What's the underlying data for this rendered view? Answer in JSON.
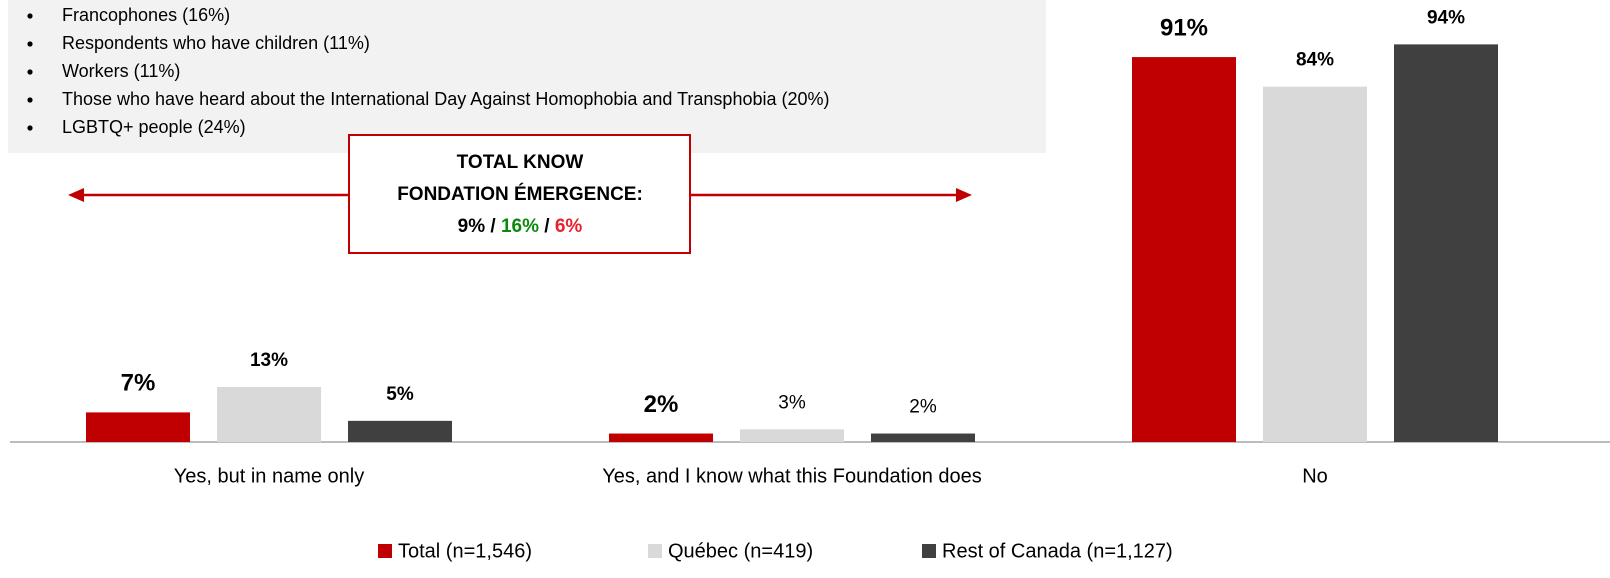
{
  "chart_data": {
    "type": "bar",
    "notes": [
      "Francophones (16%)",
      "Respondents who have children (11%)",
      "Workers (11%)",
      "Those who have heard about the International Day Against Homophobia and Transphobia (20%)",
      "LGBTQ+ people (24%)"
    ],
    "annotation": {
      "lines": [
        "TOTAL KNOW",
        "FONDATION ÉMERGENCE:"
      ],
      "values": [
        9,
        16,
        6
      ],
      "value_labels": [
        "9%",
        "16%",
        "6%"
      ],
      "colors": [
        "#000000",
        "#0a8a0a",
        "#e8212e"
      ],
      "separator": "/"
    },
    "categories": [
      "Yes, but in name only",
      "Yes, and I know what this Foundation does",
      "No"
    ],
    "series": [
      {
        "name": "Total (n=1,546)",
        "color": "#c00000",
        "values": [
          7,
          2,
          91
        ],
        "value_labels": [
          "7%",
          "2%",
          "91%"
        ],
        "label_colors": [
          "#000000",
          "#000000",
          "#000000"
        ],
        "label_weights": [
          "bold",
          "bold",
          "bold"
        ]
      },
      {
        "name": "Québec (n=419)",
        "color": "#d9d9d9",
        "values": [
          13,
          3,
          84
        ],
        "value_labels": [
          "13%",
          "3%",
          "84%"
        ],
        "label_colors": [
          "#0a8a0a",
          "#000000",
          "#e8212e"
        ],
        "label_weights": [
          "bold",
          "normal",
          "bold"
        ]
      },
      {
        "name": "Rest of Canada (n=1,127)",
        "color": "#404040",
        "values": [
          5,
          2,
          94
        ],
        "value_labels": [
          "5%",
          "2%",
          "94%"
        ],
        "label_colors": [
          "#e8212e",
          "#000000",
          "#0a8a0a"
        ],
        "label_weights": [
          "bold",
          "normal",
          "bold"
        ]
      }
    ]
  }
}
